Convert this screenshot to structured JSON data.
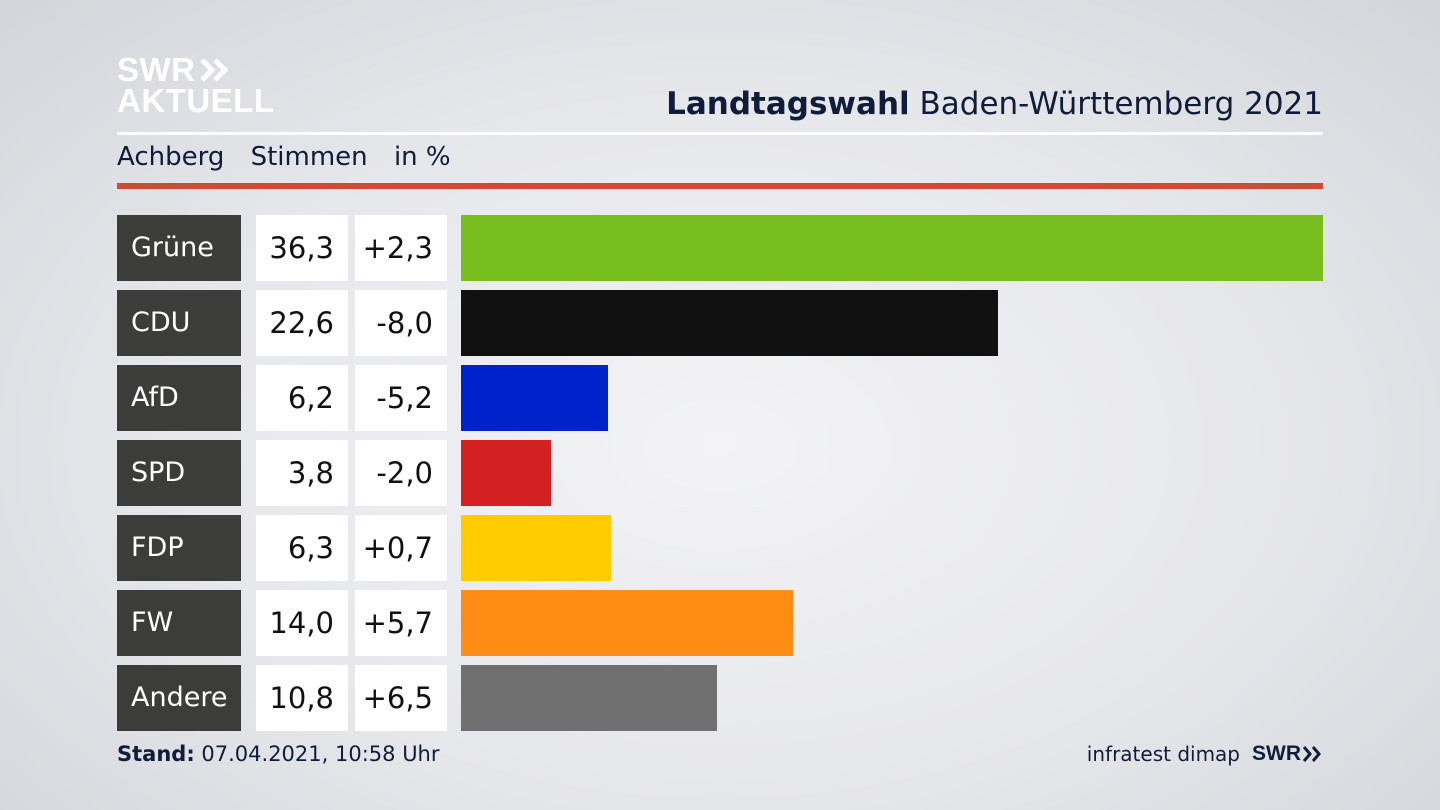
{
  "logo": {
    "line1": "SWR",
    "line2": "AKTUELL"
  },
  "title": {
    "bold": "Landtagswahl",
    "rest": "Baden-Württemberg 2021"
  },
  "subheader": {
    "place": "Achberg",
    "measure": "Stimmen",
    "unit": "in %"
  },
  "footer": {
    "stand_label": "Stand:",
    "stand_value": "07.04.2021, 10:58 Uhr",
    "source": "infratest dimap",
    "brand": "SWR"
  },
  "chart_data": {
    "type": "bar",
    "orientation": "horizontal",
    "categories": [
      "Grüne",
      "CDU",
      "AfD",
      "SPD",
      "FDP",
      "FW",
      "Andere"
    ],
    "values": [
      36.3,
      22.6,
      6.2,
      3.8,
      6.3,
      14.0,
      10.8
    ],
    "values_label": [
      "36,3",
      "22,6",
      "6,2",
      "3,8",
      "6,3",
      "14,0",
      "10,8"
    ],
    "change_label": [
      "+2,3",
      "-8,0",
      "-5,2",
      "-2,0",
      "+0,7",
      "+5,7",
      "+6,5"
    ],
    "colors": [
      "#78be1e",
      "#111111",
      "#0022cc",
      "#d42020",
      "#ffcc00",
      "#ff8c14",
      "#707070"
    ],
    "xlim": [
      0,
      36.3
    ]
  }
}
